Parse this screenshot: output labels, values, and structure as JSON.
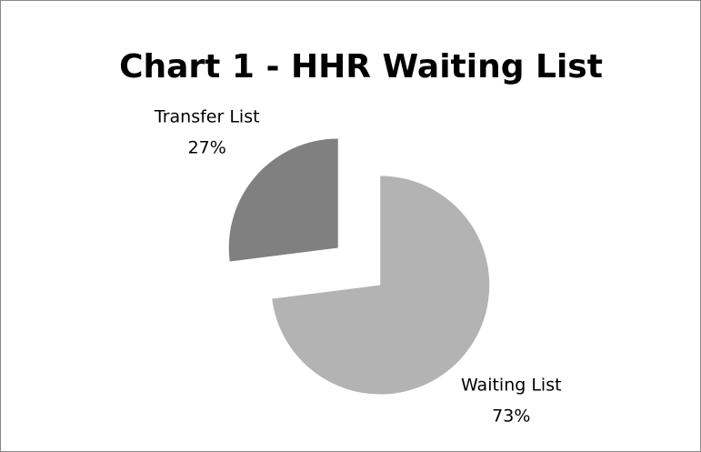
{
  "chart_data": {
    "type": "pie",
    "title": "Chart 1 - HHR Waiting List",
    "categories": [
      "Waiting List",
      "Transfer List"
    ],
    "values": [
      73,
      27
    ],
    "value_labels": [
      "73%",
      "27%"
    ],
    "colors": [
      "#b3b3b3",
      "#808080"
    ]
  }
}
